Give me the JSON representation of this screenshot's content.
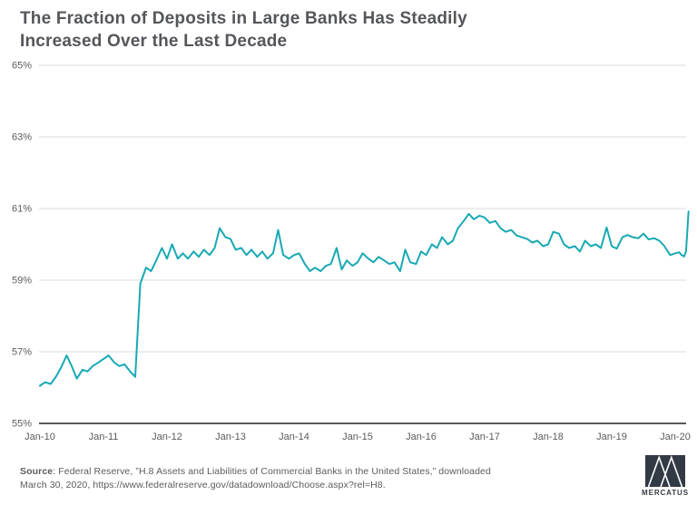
{
  "title": {
    "line1": "The Fraction of Deposits in Large Banks Has Steadily",
    "line2": "Increased Over the Last Decade"
  },
  "footer": {
    "source_label": "Source",
    "source_rest": ": Federal Reserve, ”H.8 Assets and Liabilities of Commercial Banks in the United States,” downloaded",
    "source_line2": "March 30, 2020, https://www.federalreserve.gov/datadownload/Choose.aspx?rel=H8.",
    "logo_text": "MERCATUS"
  },
  "colors": {
    "accent": "#18A9B4",
    "grid": "#DADBDC",
    "axis": "#404146",
    "text_dark": "#54565B",
    "text_gray": "#5A5B5F",
    "navy": "#323A45",
    "bg": "#FFFFFF"
  },
  "chart_data": {
    "type": "line",
    "title": "The Fraction of Deposits in Large Banks Has Steadily Increased Over the Last Decade",
    "xlabel": "",
    "ylabel": "",
    "xlim": [
      2010,
      2020.25
    ],
    "ylim": [
      55,
      65
    ],
    "grid": true,
    "legend": false,
    "x_ticks": [
      "Jan-10",
      "Jan-11",
      "Jan-12",
      "Jan-13",
      "Jan-14",
      "Jan-15",
      "Jan-16",
      "Jan-17",
      "Jan-18",
      "Jan-19",
      "Jan-20"
    ],
    "y_ticks": [
      {
        "label": "65%",
        "value": 65
      },
      {
        "label": "63%",
        "value": 63
      },
      {
        "label": "61%",
        "value": 61
      },
      {
        "label": "59%",
        "value": 59
      },
      {
        "label": "57%",
        "value": 57
      },
      {
        "label": "55%",
        "value": 55
      }
    ],
    "series": [
      {
        "name": "Fraction of deposits in large banks",
        "points": [
          [
            2010.0,
            56.05
          ],
          [
            2010.08,
            56.15
          ],
          [
            2010.17,
            56.1
          ],
          [
            2010.25,
            56.3
          ],
          [
            2010.33,
            56.55
          ],
          [
            2010.42,
            56.9
          ],
          [
            2010.5,
            56.6
          ],
          [
            2010.58,
            56.25
          ],
          [
            2010.67,
            56.5
          ],
          [
            2010.75,
            56.45
          ],
          [
            2010.83,
            56.6
          ],
          [
            2010.92,
            56.7
          ],
          [
            2011.0,
            56.8
          ],
          [
            2011.08,
            56.9
          ],
          [
            2011.17,
            56.7
          ],
          [
            2011.25,
            56.6
          ],
          [
            2011.33,
            56.65
          ],
          [
            2011.42,
            56.45
          ],
          [
            2011.5,
            56.3
          ],
          [
            2011.58,
            58.9
          ],
          [
            2011.67,
            59.35
          ],
          [
            2011.75,
            59.25
          ],
          [
            2011.83,
            59.55
          ],
          [
            2011.92,
            59.9
          ],
          [
            2012.0,
            59.6
          ],
          [
            2012.08,
            60.0
          ],
          [
            2012.17,
            59.6
          ],
          [
            2012.25,
            59.75
          ],
          [
            2012.33,
            59.6
          ],
          [
            2012.42,
            59.8
          ],
          [
            2012.5,
            59.65
          ],
          [
            2012.58,
            59.85
          ],
          [
            2012.67,
            59.7
          ],
          [
            2012.75,
            59.9
          ],
          [
            2012.83,
            60.45
          ],
          [
            2012.92,
            60.2
          ],
          [
            2013.0,
            60.15
          ],
          [
            2013.08,
            59.85
          ],
          [
            2013.17,
            59.9
          ],
          [
            2013.25,
            59.7
          ],
          [
            2013.33,
            59.85
          ],
          [
            2013.42,
            59.65
          ],
          [
            2013.5,
            59.8
          ],
          [
            2013.58,
            59.6
          ],
          [
            2013.67,
            59.75
          ],
          [
            2013.75,
            60.4
          ],
          [
            2013.83,
            59.7
          ],
          [
            2013.92,
            59.6
          ],
          [
            2014.0,
            59.7
          ],
          [
            2014.08,
            59.75
          ],
          [
            2014.17,
            59.45
          ],
          [
            2014.25,
            59.25
          ],
          [
            2014.33,
            59.35
          ],
          [
            2014.42,
            59.25
          ],
          [
            2014.5,
            59.4
          ],
          [
            2014.58,
            59.45
          ],
          [
            2014.67,
            59.9
          ],
          [
            2014.75,
            59.3
          ],
          [
            2014.83,
            59.55
          ],
          [
            2014.92,
            59.4
          ],
          [
            2015.0,
            59.5
          ],
          [
            2015.08,
            59.75
          ],
          [
            2015.17,
            59.6
          ],
          [
            2015.25,
            59.5
          ],
          [
            2015.33,
            59.65
          ],
          [
            2015.42,
            59.55
          ],
          [
            2015.5,
            59.45
          ],
          [
            2015.58,
            59.5
          ],
          [
            2015.67,
            59.25
          ],
          [
            2015.75,
            59.85
          ],
          [
            2015.83,
            59.5
          ],
          [
            2015.92,
            59.45
          ],
          [
            2016.0,
            59.8
          ],
          [
            2016.08,
            59.7
          ],
          [
            2016.17,
            60.0
          ],
          [
            2016.25,
            59.9
          ],
          [
            2016.33,
            60.2
          ],
          [
            2016.42,
            60.0
          ],
          [
            2016.5,
            60.1
          ],
          [
            2016.58,
            60.45
          ],
          [
            2016.67,
            60.65
          ],
          [
            2016.75,
            60.85
          ],
          [
            2016.83,
            60.7
          ],
          [
            2016.92,
            60.8
          ],
          [
            2017.0,
            60.75
          ],
          [
            2017.08,
            60.6
          ],
          [
            2017.17,
            60.65
          ],
          [
            2017.25,
            60.45
          ],
          [
            2017.33,
            60.35
          ],
          [
            2017.42,
            60.4
          ],
          [
            2017.5,
            60.25
          ],
          [
            2017.58,
            60.2
          ],
          [
            2017.67,
            60.15
          ],
          [
            2017.75,
            60.05
          ],
          [
            2017.83,
            60.1
          ],
          [
            2017.92,
            59.95
          ],
          [
            2018.0,
            60.0
          ],
          [
            2018.08,
            60.35
          ],
          [
            2018.17,
            60.3
          ],
          [
            2018.25,
            60.0
          ],
          [
            2018.33,
            59.9
          ],
          [
            2018.42,
            59.95
          ],
          [
            2018.5,
            59.8
          ],
          [
            2018.58,
            60.1
          ],
          [
            2018.67,
            59.95
          ],
          [
            2018.75,
            60.0
          ],
          [
            2018.83,
            59.9
          ],
          [
            2018.92,
            60.47
          ],
          [
            2019.0,
            59.95
          ],
          [
            2019.08,
            59.88
          ],
          [
            2019.17,
            60.2
          ],
          [
            2019.25,
            60.26
          ],
          [
            2019.33,
            60.2
          ],
          [
            2019.42,
            60.17
          ],
          [
            2019.5,
            60.3
          ],
          [
            2019.58,
            60.14
          ],
          [
            2019.67,
            60.17
          ],
          [
            2019.75,
            60.1
          ],
          [
            2019.83,
            59.95
          ],
          [
            2019.92,
            59.7
          ],
          [
            2020.0,
            59.75
          ],
          [
            2020.06,
            59.78
          ],
          [
            2020.1,
            59.7
          ],
          [
            2020.14,
            59.66
          ],
          [
            2020.17,
            59.8
          ],
          [
            2020.21,
            60.92
          ]
        ]
      }
    ]
  }
}
